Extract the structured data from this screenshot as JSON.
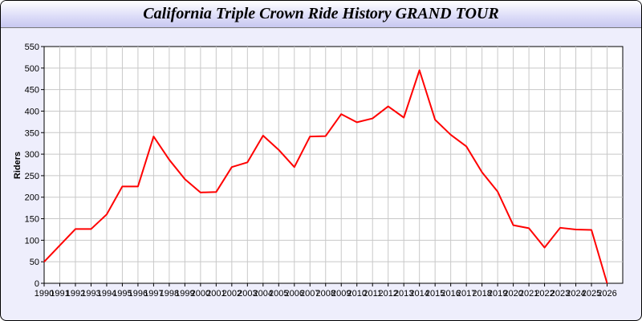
{
  "chart_data": {
    "type": "line",
    "title": "California Triple Crown Ride History GRAND TOUR",
    "xlabel": "",
    "ylabel": "Riders",
    "ylim": [
      0,
      550
    ],
    "yticks": [
      0,
      50,
      100,
      150,
      200,
      250,
      300,
      350,
      400,
      450,
      500,
      550
    ],
    "xlim": [
      1990,
      2027
    ],
    "grid": true,
    "x": [
      1990,
      1991,
      1992,
      1993,
      1994,
      1995,
      1996,
      1997,
      1998,
      1999,
      2000,
      2001,
      2002,
      2003,
      2004,
      2005,
      2006,
      2007,
      2008,
      2009,
      2010,
      2011,
      2012,
      2013,
      2014,
      2015,
      2016,
      2017,
      2018,
      2019,
      2020,
      2021,
      2022,
      2023,
      2024,
      2025,
      2026
    ],
    "series": [
      {
        "color": "#ff0000",
        "values": [
          50,
          88,
          126,
          126,
          160,
          225,
          225,
          341,
          287,
          242,
          211,
          212,
          270,
          281,
          343,
          310,
          270,
          341,
          342,
          393,
          374,
          383,
          411,
          385,
          495,
          380,
          345,
          318,
          258,
          213,
          135,
          128,
          83,
          129,
          125,
          124,
          0
        ]
      }
    ]
  }
}
